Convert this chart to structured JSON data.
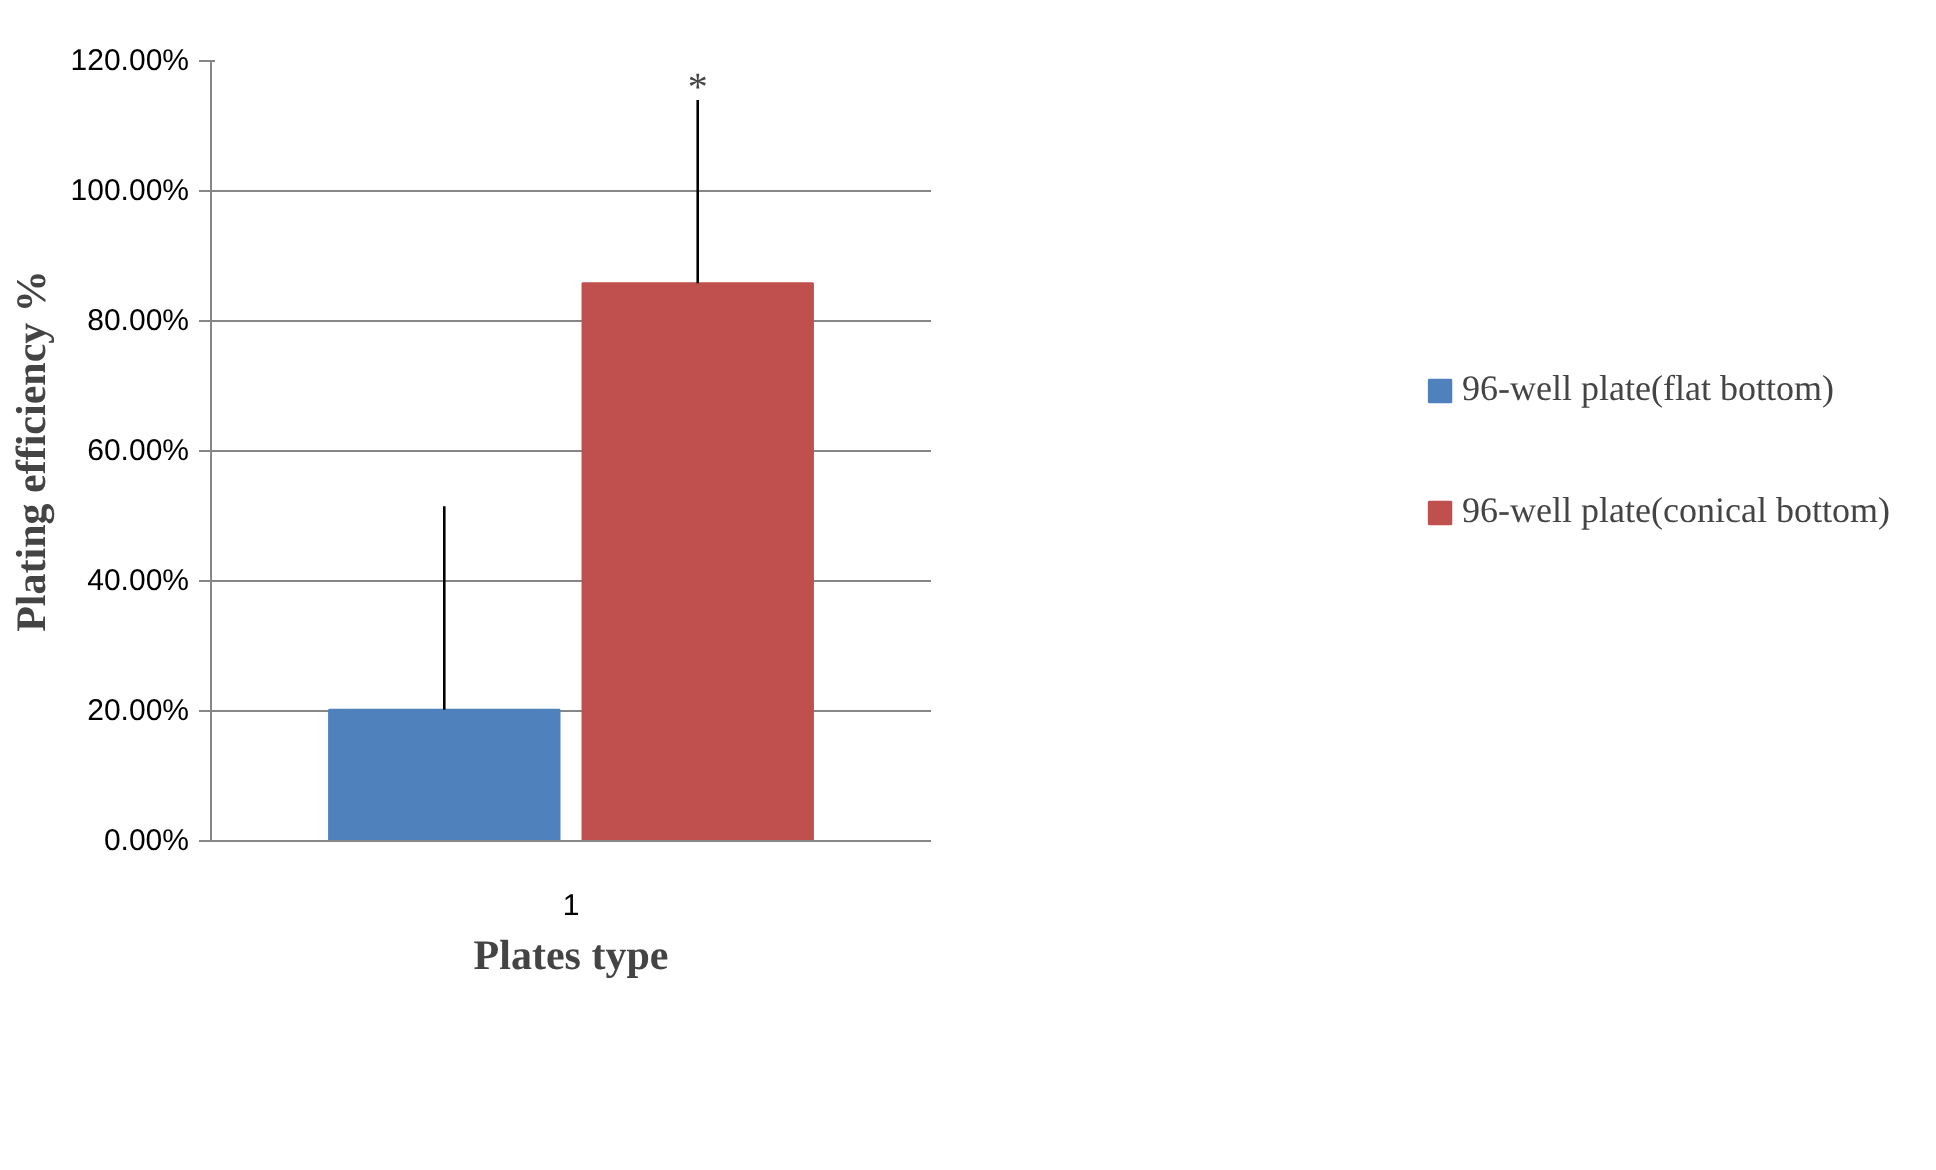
{
  "chart_data": {
    "type": "bar",
    "xlabel": "Plates type",
    "ylabel": "Plating efficiency %",
    "categories": [
      "1"
    ],
    "series": [
      {
        "name": "96-well plate(flat bottom)",
        "color": "#4f81bd",
        "values": [
          20.2
        ],
        "errors": [
          [
            20.2,
            51.5
          ]
        ]
      },
      {
        "name": "96-well plate(conical bottom)",
        "color": "#c0504d",
        "values": [
          85.8
        ],
        "errors": [
          [
            85.8,
            114
          ]
        ]
      }
    ],
    "ylim": [
      0,
      120
    ],
    "yticks": [
      {
        "value": 0,
        "label": "0.00%"
      },
      {
        "value": 20,
        "label": "20.00%"
      },
      {
        "value": 40,
        "label": "40.00%"
      },
      {
        "value": 60,
        "label": "60.00%"
      },
      {
        "value": 80,
        "label": "80.00%"
      },
      {
        "value": 100,
        "label": "100.00%"
      },
      {
        "value": 120,
        "label": "120.00%"
      }
    ],
    "grid": "y",
    "legend": "right",
    "annotations": [
      "*"
    ]
  }
}
